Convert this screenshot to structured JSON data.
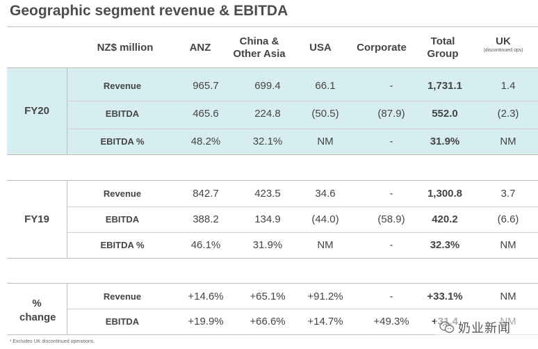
{
  "title": "Geographic segment revenue & EBITDA",
  "header": {
    "unit": "NZ$ million",
    "columns": [
      "ANZ",
      "China & Other Asia",
      "USA",
      "Corporate",
      "Total Group",
      "UK"
    ],
    "uk_note": "(discontinued ops)"
  },
  "sections": [
    {
      "label": "FY20",
      "rows": [
        {
          "metric": "Revenue",
          "values": [
            "965.7",
            "699.4",
            "66.1",
            "-",
            "1,731.1",
            "1.4"
          ]
        },
        {
          "metric": "EBITDA",
          "values": [
            "465.6",
            "224.8",
            "(50.5)",
            "(87.9)",
            "552.0",
            "(2.3)"
          ]
        },
        {
          "metric": "EBITDA %",
          "values": [
            "48.2%",
            "32.1%",
            "NM",
            "-",
            "31.9%",
            "NM"
          ]
        }
      ]
    },
    {
      "label": "FY19",
      "rows": [
        {
          "metric": "Revenue",
          "values": [
            "842.7",
            "423.5",
            "34.6",
            "-",
            "1,300.8",
            "3.7"
          ]
        },
        {
          "metric": "EBITDA",
          "values": [
            "388.2",
            "134.9",
            "(44.0)",
            "(58.9)",
            "420.2",
            "(6.6)"
          ]
        },
        {
          "metric": "EBITDA %",
          "values": [
            "46.1%",
            "31.9%",
            "NM",
            "-",
            "32.3%",
            "NM"
          ]
        }
      ]
    },
    {
      "label": "% change",
      "rows": [
        {
          "metric": "Revenue",
          "values": [
            "+14.6%",
            "+65.1%",
            "+91.2%",
            "-",
            "+33.1%",
            "NM"
          ]
        },
        {
          "metric": "EBITDA",
          "values": [
            "+19.9%",
            "+66.6%",
            "+14.7%",
            "+49.3%",
            "+31.4",
            "NM"
          ]
        }
      ]
    }
  ],
  "footnote": "¹ Excludes UK discontinued operations.",
  "watermark": {
    "text": "奶业新闻",
    "icon": "wechat-icon"
  },
  "colors": {
    "shade": "#d7eef1",
    "rule": "#bdbdbd"
  }
}
